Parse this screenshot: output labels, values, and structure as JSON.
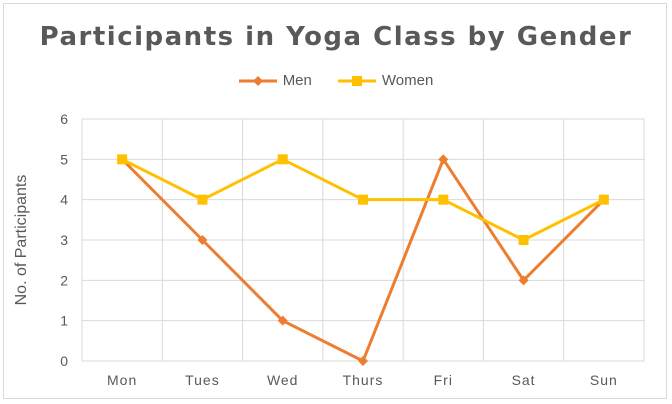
{
  "chart_data": {
    "type": "line",
    "title": "Participants in Yoga Class by Gender",
    "xlabel": "",
    "ylabel": "No. of Participants",
    "categories": [
      "Mon",
      "Tues",
      "Wed",
      "Thurs",
      "Fri",
      "Sat",
      "Sun"
    ],
    "ylim": [
      0,
      6
    ],
    "yticks": [
      "0",
      "1",
      "2",
      "3",
      "4",
      "5",
      "6"
    ],
    "grid": true,
    "legend_position": "top",
    "series": [
      {
        "name": "Men",
        "values": [
          5,
          3,
          1,
          0,
          5,
          2,
          4
        ],
        "color": "#ED7D31",
        "marker": "diamond"
      },
      {
        "name": "Women",
        "values": [
          5,
          4,
          5,
          4,
          4,
          3,
          4
        ],
        "color": "#FFC000",
        "marker": "square"
      }
    ]
  }
}
